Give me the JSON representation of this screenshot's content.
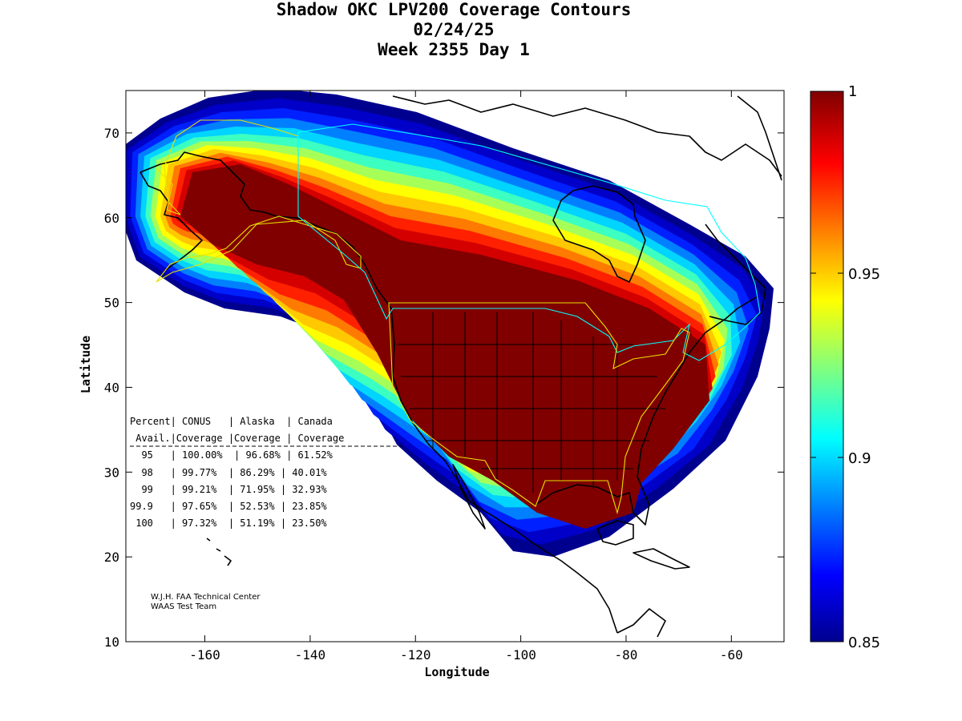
{
  "title": {
    "line1": "Shadow OKC LPV200 Coverage Contours",
    "line2": "02/24/25",
    "line3": "Week 2355 Day 1"
  },
  "axes": {
    "xlabel": "Longitude",
    "ylabel": "Latitude",
    "x_ticks": [
      "-160",
      "-140",
      "-120",
      "-100",
      "-80",
      "-60"
    ],
    "y_ticks": [
      "70",
      "60",
      "50",
      "40",
      "30",
      "20",
      "10"
    ]
  },
  "colorbar": {
    "ticks": [
      "1",
      "0.95",
      "0.9",
      "0.85"
    ],
    "colors": [
      "#800000",
      "#d40000",
      "#ff2000",
      "#ff7a00",
      "#ffc800",
      "#ffff00",
      "#a6ff58",
      "#3cffc2",
      "#00d4ff",
      "#0080ff",
      "#0020ff",
      "#0000c8",
      "#00008f"
    ]
  },
  "table": {
    "header1": "Percent| CONUS   | Alaska  | Canada",
    "header2": " Avail.|Coverage |Coverage | Coverage",
    "rows": [
      "  95   | 100.00%  | 96.68% | 61.52%",
      "  98   | 99.77%  | 86.29% | 40.01%",
      "  99   | 99.21%  | 71.95% | 32.93%",
      "99.9   | 97.65%  | 52.53% | 23.85%",
      " 100   | 97.32%  | 51.19% | 23.50%"
    ]
  },
  "credit": {
    "line1": "W.J.H. FAA Technical Center",
    "line2": "WAAS Test Team"
  },
  "chart_data": {
    "type": "heatmap",
    "title": "Shadow OKC LPV200 Coverage Contours",
    "xlabel": "Longitude",
    "ylabel": "Latitude",
    "xlim": [
      -175,
      -50
    ],
    "ylim": [
      10,
      75
    ],
    "colorbar_range": [
      0.85,
      1
    ],
    "coverage_table": [
      {
        "percent_avail": "95",
        "conus": "100.00%",
        "alaska": "96.68%",
        "canada": "61.52%"
      },
      {
        "percent_avail": "98",
        "conus": "99.77%",
        "alaska": "86.29%",
        "canada": "40.01%"
      },
      {
        "percent_avail": "99",
        "conus": "99.21%",
        "alaska": "71.95%",
        "canada": "32.93%"
      },
      {
        "percent_avail": "99.9",
        "conus": "97.65%",
        "alaska": "52.53%",
        "canada": "23.85%"
      },
      {
        "percent_avail": "100",
        "conus": "97.32%",
        "alaska": "51.19%",
        "canada": "23.50%"
      }
    ]
  }
}
